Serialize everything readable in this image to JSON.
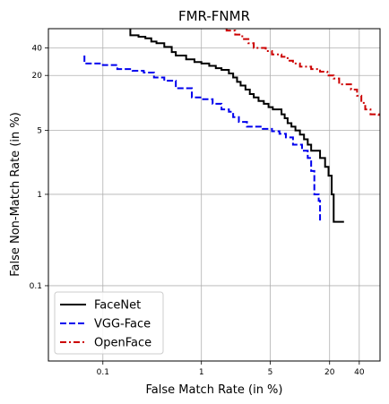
{
  "chart_data": {
    "type": "line",
    "title": "FMR-FNMR",
    "xlabel": "False Match Rate (in %)",
    "ylabel": "False Non-Match Rate (in %)",
    "xscale": "log",
    "yscale": "log",
    "xlim": [
      0.028,
      65
    ],
    "ylim": [
      0.015,
      65
    ],
    "xticks": [
      0.1,
      1,
      5,
      20,
      40
    ],
    "xtick_labels": [
      "0.1",
      "1",
      "5",
      "20",
      "40"
    ],
    "yticks": [
      0.1,
      1,
      5,
      20,
      40
    ],
    "ytick_labels": [
      "0.1",
      "1",
      "5",
      "20",
      "40"
    ],
    "grid": true,
    "legend": "lower-left",
    "series": [
      {
        "name": "FaceNet",
        "color": "#000000",
        "dash": "solid",
        "points": [
          [
            0.19,
            65
          ],
          [
            0.19,
            55
          ],
          [
            0.23,
            55
          ],
          [
            0.23,
            53
          ],
          [
            0.27,
            53
          ],
          [
            0.27,
            51
          ],
          [
            0.31,
            51
          ],
          [
            0.31,
            47
          ],
          [
            0.35,
            47
          ],
          [
            0.35,
            45
          ],
          [
            0.42,
            45
          ],
          [
            0.42,
            41
          ],
          [
            0.5,
            41
          ],
          [
            0.5,
            36
          ],
          [
            0.55,
            36
          ],
          [
            0.55,
            33
          ],
          [
            0.7,
            33
          ],
          [
            0.7,
            30
          ],
          [
            0.85,
            30
          ],
          [
            0.85,
            28
          ],
          [
            1.0,
            28
          ],
          [
            1.0,
            27
          ],
          [
            1.2,
            27
          ],
          [
            1.2,
            25.5
          ],
          [
            1.4,
            25.5
          ],
          [
            1.4,
            24
          ],
          [
            1.6,
            24
          ],
          [
            1.6,
            23
          ],
          [
            1.9,
            23
          ],
          [
            1.9,
            21
          ],
          [
            2.1,
            21
          ],
          [
            2.1,
            19
          ],
          [
            2.3,
            19
          ],
          [
            2.3,
            17
          ],
          [
            2.5,
            17
          ],
          [
            2.5,
            15.5
          ],
          [
            2.8,
            15.5
          ],
          [
            2.8,
            14
          ],
          [
            3.1,
            14
          ],
          [
            3.1,
            12.5
          ],
          [
            3.4,
            12.5
          ],
          [
            3.4,
            11.5
          ],
          [
            3.8,
            11.5
          ],
          [
            3.8,
            10.5
          ],
          [
            4.3,
            10.5
          ],
          [
            4.3,
            9.8
          ],
          [
            4.8,
            9.8
          ],
          [
            4.8,
            9.0
          ],
          [
            5.3,
            9.0
          ],
          [
            5.3,
            8.5
          ],
          [
            6.5,
            8.5
          ],
          [
            6.5,
            7.5
          ],
          [
            7.0,
            7.5
          ],
          [
            7.0,
            6.8
          ],
          [
            7.5,
            6.8
          ],
          [
            7.5,
            6.0
          ],
          [
            8.2,
            6.0
          ],
          [
            8.2,
            5.5
          ],
          [
            9.0,
            5.5
          ],
          [
            9.0,
            5.0
          ],
          [
            10.0,
            5.0
          ],
          [
            10.0,
            4.5
          ],
          [
            11.0,
            4.5
          ],
          [
            11.0,
            4.0
          ],
          [
            12.0,
            4.0
          ],
          [
            12.0,
            3.5
          ],
          [
            13.0,
            3.5
          ],
          [
            13.0,
            3.0
          ],
          [
            16.0,
            3.0
          ],
          [
            16.0,
            2.5
          ],
          [
            18.0,
            2.5
          ],
          [
            18.0,
            2.0
          ],
          [
            19.5,
            2.0
          ],
          [
            19.5,
            1.6
          ],
          [
            21.0,
            1.6
          ],
          [
            21.0,
            1.0
          ],
          [
            22.0,
            1.0
          ],
          [
            22.0,
            0.5
          ],
          [
            28.0,
            0.5
          ]
        ]
      },
      {
        "name": "VGG-Face",
        "color": "#0000ee",
        "dash": "dashed",
        "points": [
          [
            0.065,
            33
          ],
          [
            0.065,
            27
          ],
          [
            0.1,
            27
          ],
          [
            0.1,
            26
          ],
          [
            0.14,
            26
          ],
          [
            0.14,
            23.5
          ],
          [
            0.2,
            23.5
          ],
          [
            0.2,
            22.5
          ],
          [
            0.26,
            22.5
          ],
          [
            0.26,
            21.5
          ],
          [
            0.33,
            21.5
          ],
          [
            0.33,
            19
          ],
          [
            0.42,
            19
          ],
          [
            0.42,
            17.5
          ],
          [
            0.55,
            17.5
          ],
          [
            0.55,
            14.5
          ],
          [
            0.8,
            14.5
          ],
          [
            0.8,
            11.5
          ],
          [
            1.0,
            11.5
          ],
          [
            1.0,
            11.0
          ],
          [
            1.3,
            11.0
          ],
          [
            1.3,
            9.8
          ],
          [
            1.6,
            9.8
          ],
          [
            1.6,
            8.5
          ],
          [
            1.9,
            8.5
          ],
          [
            1.9,
            8.0
          ],
          [
            2.1,
            8.0
          ],
          [
            2.1,
            7.0
          ],
          [
            2.4,
            7.0
          ],
          [
            2.4,
            6.2
          ],
          [
            2.9,
            6.2
          ],
          [
            2.9,
            5.5
          ],
          [
            4.2,
            5.5
          ],
          [
            4.2,
            5.2
          ],
          [
            5.2,
            5.2
          ],
          [
            5.2,
            4.9
          ],
          [
            6.2,
            4.9
          ],
          [
            6.2,
            4.6
          ],
          [
            7.2,
            4.6
          ],
          [
            7.2,
            4.2
          ],
          [
            8.5,
            4.2
          ],
          [
            8.5,
            3.5
          ],
          [
            10.5,
            3.5
          ],
          [
            10.5,
            3.0
          ],
          [
            12.0,
            3.0
          ],
          [
            12.0,
            2.5
          ],
          [
            13.0,
            2.5
          ],
          [
            13.0,
            1.8
          ],
          [
            14.0,
            1.8
          ],
          [
            14.0,
            1.0
          ],
          [
            15.5,
            1.0
          ],
          [
            15.5,
            0.85
          ],
          [
            16.0,
            0.85
          ],
          [
            16.0,
            0.5
          ],
          [
            16.5,
            0.5
          ]
        ]
      },
      {
        "name": "OpenFace",
        "color": "#cc0000",
        "dash": "dashdot",
        "points": [
          [
            1.8,
            65
          ],
          [
            1.8,
            62
          ],
          [
            2.2,
            62
          ],
          [
            2.2,
            56
          ],
          [
            2.6,
            56
          ],
          [
            2.6,
            50
          ],
          [
            3.0,
            50
          ],
          [
            3.0,
            45
          ],
          [
            3.4,
            45
          ],
          [
            3.4,
            40
          ],
          [
            4.5,
            40
          ],
          [
            4.5,
            37
          ],
          [
            5.2,
            37
          ],
          [
            5.2,
            34
          ],
          [
            6.5,
            34
          ],
          [
            6.5,
            32
          ],
          [
            7.5,
            32
          ],
          [
            7.5,
            29
          ],
          [
            8.5,
            29
          ],
          [
            8.5,
            27
          ],
          [
            10.0,
            27
          ],
          [
            10.0,
            25
          ],
          [
            13.0,
            25
          ],
          [
            13.0,
            23.5
          ],
          [
            16.0,
            23.5
          ],
          [
            16.0,
            22
          ],
          [
            19.0,
            22
          ],
          [
            19.0,
            20
          ],
          [
            22.0,
            20
          ],
          [
            22.0,
            18.5
          ],
          [
            25.0,
            18.5
          ],
          [
            25.0,
            16
          ],
          [
            33.0,
            16
          ],
          [
            33.0,
            14
          ],
          [
            38.0,
            14
          ],
          [
            38.0,
            12
          ],
          [
            42.0,
            12
          ],
          [
            42.0,
            10
          ],
          [
            46.0,
            10
          ],
          [
            46.0,
            8.5
          ],
          [
            52.0,
            8.5
          ],
          [
            52.0,
            7.5
          ],
          [
            63.0,
            7.5
          ],
          [
            63.0,
            6.8
          ]
        ]
      }
    ]
  }
}
